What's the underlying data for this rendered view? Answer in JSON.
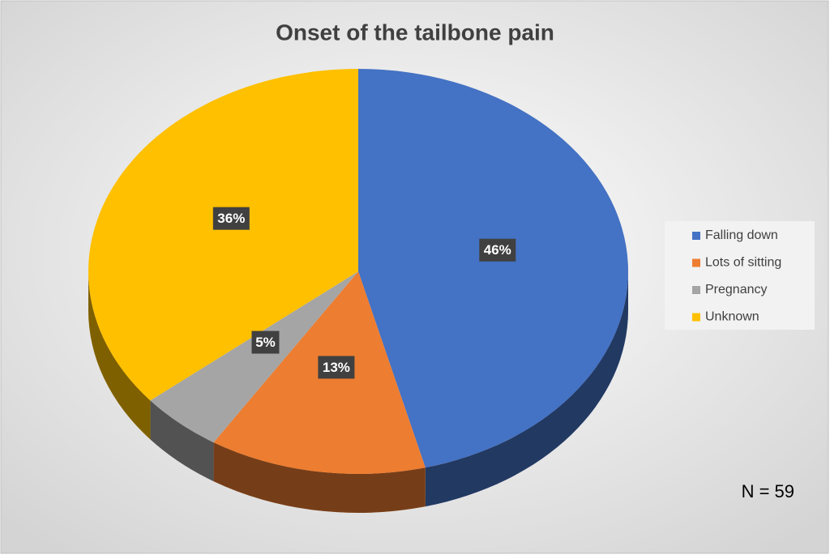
{
  "chart_data": {
    "type": "pie",
    "title": "Onset of the tailbone pain",
    "categories": [
      "Falling down",
      "Lots of sitting",
      "Pregnancy",
      "Unknown"
    ],
    "values": [
      46,
      13,
      5,
      36
    ],
    "value_labels": [
      "46%",
      "13%",
      "5%",
      "36%"
    ],
    "colors": [
      "#4472c4",
      "#ed7d31",
      "#a5a5a5",
      "#ffc000"
    ],
    "legend": "right",
    "annotation": "N = 59"
  }
}
